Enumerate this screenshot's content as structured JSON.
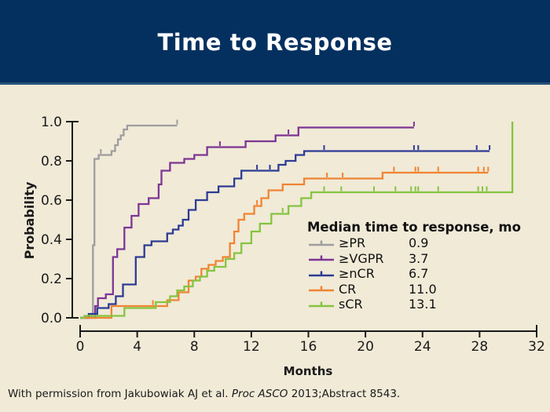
{
  "header": {
    "title": "Time to Response",
    "bg_color": "#04305f",
    "text_color": "#ffffff"
  },
  "page": {
    "bg_color": "#f0ead7"
  },
  "legend": {
    "title": "Median time to response, mo",
    "items": [
      {
        "label": "≥PR",
        "value": "0.9",
        "color": "#9d9d9f"
      },
      {
        "label": "≥VGPR",
        "value": "3.7",
        "color": "#7d3594"
      },
      {
        "label": "≥nCR",
        "value": "6.7",
        "color": "#2c3b94"
      },
      {
        "label": "CR",
        "value": "11.0",
        "color": "#f08432"
      },
      {
        "label": "sCR",
        "value": "13.1",
        "color": "#85c441"
      }
    ]
  },
  "footer": {
    "prefix": "With permission from Jakubowiak AJ et al. ",
    "italic": "Proc ASCO",
    "suffix": " 2013;Abstract 8543."
  },
  "chart_data": {
    "type": "line",
    "step": true,
    "title": "Time to Response",
    "xlabel": "Months",
    "ylabel": "Probability",
    "xlim": [
      0,
      32
    ],
    "ylim": [
      0.0,
      1.0
    ],
    "grid": false,
    "axis_color": "#1a1a1a",
    "x_ticks": [
      0,
      4,
      8,
      12,
      16,
      20,
      24,
      28,
      32
    ],
    "x_tick_labels": [
      "0",
      "4",
      "8",
      "12",
      "16",
      "20",
      "24",
      "28",
      "32"
    ],
    "y_ticks": [
      0.0,
      0.2,
      0.4,
      0.6,
      0.8,
      1.0
    ],
    "y_tick_labels": [
      "0.0",
      "0.2",
      "0.4",
      "0.6",
      "0.8",
      "1.0"
    ],
    "legend_title": "Median time to response, mo",
    "legend_position": "inside-lower-right",
    "series": [
      {
        "name": "≥PR",
        "median_months": 0.9,
        "color": "#9d9d9f",
        "points": [
          [
            0,
            0
          ],
          [
            0.8,
            0.02
          ],
          [
            0.9,
            0.37
          ],
          [
            1.0,
            0.81
          ],
          [
            1.3,
            0.83
          ],
          [
            2.2,
            0.85
          ],
          [
            2.45,
            0.88
          ],
          [
            2.65,
            0.91
          ],
          [
            2.85,
            0.93
          ],
          [
            3.05,
            0.96
          ],
          [
            3.3,
            0.98
          ],
          [
            6.8,
            0.98
          ]
        ],
        "censor_marks": [
          [
            1.45,
            0.83
          ],
          [
            6.8,
            0.98
          ]
        ]
      },
      {
        "name": "≥VGPR",
        "median_months": 3.7,
        "color": "#7d3594",
        "points": [
          [
            0,
            0
          ],
          [
            1.05,
            0.06
          ],
          [
            1.25,
            0.1
          ],
          [
            1.8,
            0.12
          ],
          [
            2.3,
            0.31
          ],
          [
            2.6,
            0.35
          ],
          [
            3.1,
            0.46
          ],
          [
            3.6,
            0.52
          ],
          [
            4.1,
            0.58
          ],
          [
            4.8,
            0.61
          ],
          [
            5.5,
            0.68
          ],
          [
            5.7,
            0.75
          ],
          [
            6.3,
            0.79
          ],
          [
            7.3,
            0.81
          ],
          [
            8.0,
            0.83
          ],
          [
            8.9,
            0.87
          ],
          [
            11.6,
            0.9
          ],
          [
            13.7,
            0.93
          ],
          [
            15.3,
            0.97
          ],
          [
            23.4,
            0.97
          ]
        ],
        "censor_marks": [
          [
            9.8,
            0.87
          ],
          [
            14.6,
            0.93
          ],
          [
            23.4,
            0.97
          ]
        ]
      },
      {
        "name": "≥nCR",
        "median_months": 6.7,
        "color": "#2c3b94",
        "points": [
          [
            0,
            0
          ],
          [
            0.6,
            0.02
          ],
          [
            1.2,
            0.05
          ],
          [
            2.0,
            0.07
          ],
          [
            2.5,
            0.11
          ],
          [
            3.0,
            0.17
          ],
          [
            3.9,
            0.31
          ],
          [
            4.5,
            0.37
          ],
          [
            5.0,
            0.39
          ],
          [
            6.1,
            0.43
          ],
          [
            6.5,
            0.45
          ],
          [
            6.9,
            0.47
          ],
          [
            7.2,
            0.5
          ],
          [
            7.6,
            0.55
          ],
          [
            8.1,
            0.6
          ],
          [
            8.9,
            0.64
          ],
          [
            9.7,
            0.67
          ],
          [
            10.8,
            0.71
          ],
          [
            11.3,
            0.75
          ],
          [
            13.9,
            0.78
          ],
          [
            14.4,
            0.8
          ],
          [
            15.1,
            0.83
          ],
          [
            15.7,
            0.85
          ],
          [
            28.7,
            0.85
          ]
        ],
        "censor_marks": [
          [
            12.4,
            0.75
          ],
          [
            13.3,
            0.75
          ],
          [
            17.1,
            0.85
          ],
          [
            23.4,
            0.85
          ],
          [
            23.7,
            0.85
          ],
          [
            27.8,
            0.85
          ],
          [
            28.7,
            0.85
          ]
        ]
      },
      {
        "name": "CR",
        "median_months": 11.0,
        "color": "#f08432",
        "points": [
          [
            0,
            0
          ],
          [
            2.2,
            0.06
          ],
          [
            6.1,
            0.09
          ],
          [
            6.9,
            0.13
          ],
          [
            7.6,
            0.19
          ],
          [
            8.1,
            0.21
          ],
          [
            8.5,
            0.25
          ],
          [
            9.0,
            0.27
          ],
          [
            9.5,
            0.29
          ],
          [
            10.0,
            0.31
          ],
          [
            10.5,
            0.38
          ],
          [
            10.8,
            0.44
          ],
          [
            11.1,
            0.5
          ],
          [
            11.5,
            0.53
          ],
          [
            12.2,
            0.57
          ],
          [
            12.7,
            0.61
          ],
          [
            13.2,
            0.65
          ],
          [
            14.2,
            0.68
          ],
          [
            15.7,
            0.71
          ],
          [
            21.2,
            0.74
          ],
          [
            28.6,
            0.74
          ]
        ],
        "censor_marks": [
          [
            5.1,
            0.06
          ],
          [
            12.4,
            0.57
          ],
          [
            17.3,
            0.71
          ],
          [
            18.4,
            0.71
          ],
          [
            22.0,
            0.74
          ],
          [
            23.5,
            0.74
          ],
          [
            23.7,
            0.74
          ],
          [
            25.1,
            0.74
          ],
          [
            27.9,
            0.74
          ],
          [
            28.3,
            0.74
          ],
          [
            28.6,
            0.74
          ]
        ]
      },
      {
        "name": "sCR",
        "median_months": 13.1,
        "color": "#85c441",
        "points": [
          [
            0,
            0
          ],
          [
            0.3,
            0.01
          ],
          [
            3.1,
            0.05
          ],
          [
            5.3,
            0.08
          ],
          [
            6.3,
            0.11
          ],
          [
            6.8,
            0.14
          ],
          [
            7.3,
            0.16
          ],
          [
            7.9,
            0.19
          ],
          [
            8.4,
            0.21
          ],
          [
            8.9,
            0.24
          ],
          [
            9.4,
            0.26
          ],
          [
            10.2,
            0.3
          ],
          [
            10.8,
            0.33
          ],
          [
            11.3,
            0.38
          ],
          [
            12.0,
            0.44
          ],
          [
            12.6,
            0.48
          ],
          [
            13.4,
            0.53
          ],
          [
            14.6,
            0.57
          ],
          [
            15.5,
            0.61
          ],
          [
            16.2,
            0.64
          ],
          [
            30.3,
            0.64
          ],
          [
            30.3,
            1.0
          ]
        ],
        "censor_marks": [
          [
            14.2,
            0.53
          ],
          [
            17.1,
            0.64
          ],
          [
            18.3,
            0.64
          ],
          [
            20.6,
            0.64
          ],
          [
            22.1,
            0.64
          ],
          [
            23.2,
            0.64
          ],
          [
            23.5,
            0.64
          ],
          [
            23.7,
            0.64
          ],
          [
            25.1,
            0.64
          ],
          [
            27.9,
            0.64
          ],
          [
            28.2,
            0.64
          ],
          [
            28.5,
            0.64
          ]
        ]
      }
    ]
  }
}
